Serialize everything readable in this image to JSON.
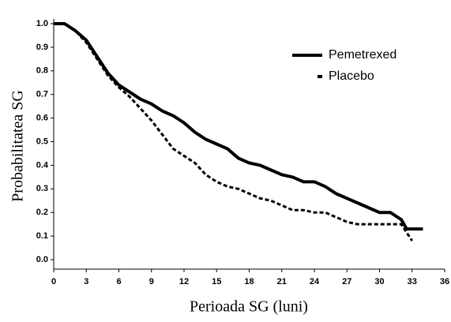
{
  "chart_data": {
    "type": "line",
    "x_label": "Perioada SG (luni)",
    "y_label": "Probabilitatea SG",
    "xlim": [
      0,
      36
    ],
    "xticks": [
      0,
      3,
      6,
      9,
      12,
      15,
      18,
      21,
      24,
      27,
      30,
      33,
      36
    ],
    "ylim": [
      -0.04,
      1.02
    ],
    "yticks": [
      {
        "value": 1,
        "label": "1.0"
      },
      0.9,
      0.8,
      0.7,
      0.6,
      0.5,
      0.4,
      0.3,
      0.2,
      0.1,
      {
        "value": 0,
        "label": "0.0"
      }
    ],
    "legend": "upper right",
    "series": [
      {
        "name": "Pemetrexed",
        "color": "#000000",
        "style": "solid",
        "x": [
          0,
          1,
          2,
          3,
          4,
          5,
          6,
          7,
          8,
          9,
          10,
          11,
          12,
          13,
          14,
          15,
          16,
          17,
          18,
          19,
          20,
          21,
          22,
          23,
          24,
          25,
          26,
          27,
          28,
          29,
          30,
          31,
          32,
          32.5,
          34
        ],
        "values": [
          1.0,
          1.0,
          0.97,
          0.93,
          0.86,
          0.79,
          0.74,
          0.71,
          0.68,
          0.66,
          0.63,
          0.61,
          0.58,
          0.54,
          0.51,
          0.49,
          0.47,
          0.43,
          0.41,
          0.4,
          0.38,
          0.36,
          0.35,
          0.33,
          0.33,
          0.31,
          0.28,
          0.26,
          0.24,
          0.22,
          0.2,
          0.2,
          0.17,
          0.13,
          0.13
        ]
      },
      {
        "name": "Placebo",
        "color": "#000000",
        "style": "dashed",
        "x": [
          0,
          1,
          2,
          3,
          4,
          5,
          6,
          7,
          8,
          9,
          10,
          11,
          12,
          13,
          14,
          15,
          16,
          17,
          18,
          19,
          20,
          21,
          22,
          23,
          24,
          25,
          26,
          27,
          28,
          29,
          30,
          31,
          32,
          33
        ],
        "values": [
          1.0,
          1.0,
          0.97,
          0.92,
          0.85,
          0.78,
          0.73,
          0.69,
          0.64,
          0.59,
          0.53,
          0.47,
          0.44,
          0.41,
          0.36,
          0.33,
          0.31,
          0.3,
          0.28,
          0.26,
          0.25,
          0.23,
          0.21,
          0.21,
          0.2,
          0.2,
          0.18,
          0.16,
          0.15,
          0.15,
          0.15,
          0.15,
          0.15,
          0.08
        ]
      }
    ]
  }
}
